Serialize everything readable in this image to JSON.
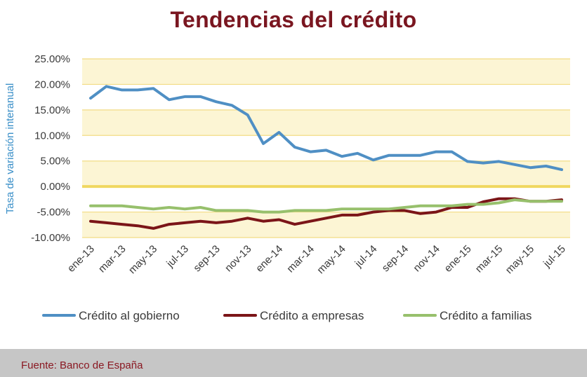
{
  "title": "Tendencias del crédito",
  "source": "Fuente: Banco de España",
  "colors": {
    "title": "#7a1620",
    "band": "#fcf5d4",
    "gridline": "#f2dc84",
    "zero_line": "#f0d760",
    "axis_text": "#3a3a3a",
    "ylabel": "#3a8fc8"
  },
  "chart_data": {
    "type": "line",
    "title": "Tendencias del crédito",
    "ylabel": "Tasa de variación interanual",
    "xlabel": "",
    "ylim": [
      -10,
      25
    ],
    "yticks": [
      25,
      20,
      15,
      10,
      5,
      0,
      -5,
      -10
    ],
    "ytick_labels": [
      "25.00%",
      "20.00%",
      "15.00%",
      "10.00%",
      "5.00%",
      "0.00%",
      "-5.00%",
      "-10.00%"
    ],
    "x": [
      "ene-13",
      "feb-13",
      "mar-13",
      "abr-13",
      "may-13",
      "jun-13",
      "jul-13",
      "ago-13",
      "sep-13",
      "oct-13",
      "nov-13",
      "dic-13",
      "ene-14",
      "feb-14",
      "mar-14",
      "abr-14",
      "may-14",
      "jun-14",
      "jul-14",
      "ago-14",
      "sep-14",
      "oct-14",
      "nov-14",
      "dic-14",
      "ene-15",
      "feb-15",
      "mar-15",
      "abr-15",
      "may-15",
      "jun-15",
      "jul-15"
    ],
    "x_tick_labels": [
      "ene-13",
      "mar-13",
      "may-13",
      "jul-13",
      "sep-13",
      "nov-13",
      "ene-14",
      "mar-14",
      "may-14",
      "jul-14",
      "sep-14",
      "nov-14",
      "ene-15",
      "mar-15",
      "may-15",
      "jul-15"
    ],
    "grid": true,
    "legend_position": "bottom",
    "series": [
      {
        "name": "Crédito al gobierno",
        "color": "#4f8fc4",
        "values": [
          17.3,
          19.6,
          18.9,
          18.9,
          19.2,
          17.0,
          17.6,
          17.6,
          16.6,
          15.9,
          14.0,
          8.4,
          10.6,
          7.7,
          6.8,
          7.1,
          5.9,
          6.5,
          5.2,
          6.1,
          6.1,
          6.1,
          6.8,
          6.8,
          4.9,
          4.6,
          4.9,
          4.3,
          3.7,
          4.0,
          3.3
        ]
      },
      {
        "name": "Crédito a empresas",
        "color": "#7b1518",
        "values": [
          -6.8,
          -7.1,
          -7.4,
          -7.7,
          -8.2,
          -7.4,
          -7.1,
          -6.8,
          -7.1,
          -6.8,
          -6.2,
          -6.8,
          -6.5,
          -7.4,
          -6.8,
          -6.2,
          -5.6,
          -5.6,
          -5.0,
          -4.7,
          -4.7,
          -5.3,
          -5.0,
          -4.1,
          -4.1,
          -3.0,
          -2.4,
          -2.4,
          -2.9,
          -2.9,
          -2.6
        ]
      },
      {
        "name": "Crédito a familias",
        "color": "#97c06c",
        "values": [
          -3.8,
          -3.8,
          -3.8,
          -4.1,
          -4.4,
          -4.1,
          -4.4,
          -4.1,
          -4.7,
          -4.7,
          -4.7,
          -5.0,
          -5.0,
          -4.7,
          -4.7,
          -4.7,
          -4.4,
          -4.4,
          -4.4,
          -4.4,
          -4.1,
          -3.8,
          -3.8,
          -3.8,
          -3.5,
          -3.5,
          -3.2,
          -2.6,
          -2.9,
          -2.9,
          -2.9
        ]
      }
    ]
  }
}
